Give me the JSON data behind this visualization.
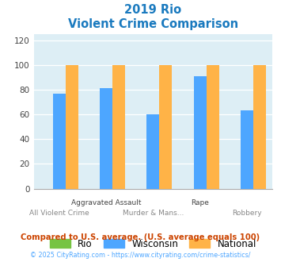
{
  "title_line1": "2019 Rio",
  "title_line2": "Violent Crime Comparison",
  "categories_top": [
    "",
    "Aggravated Assault",
    "",
    "Rape",
    ""
  ],
  "categories_bot": [
    "All Violent Crime",
    "",
    "Murder & Mans...",
    "",
    "Robbery"
  ],
  "rio_values": [
    0,
    0,
    0,
    0,
    0
  ],
  "wisconsin_values": [
    77,
    81,
    60,
    91,
    63
  ],
  "national_values": [
    100,
    100,
    100,
    100,
    100
  ],
  "rio_color": "#76c442",
  "wisconsin_color": "#4da6ff",
  "national_color": "#ffb347",
  "title_color": "#1a7abf",
  "axis_bg_color": "#ddeef5",
  "grid_color": "#ffffff",
  "ylabel_ticks": [
    0,
    20,
    40,
    60,
    80,
    100,
    120
  ],
  "ylim_max": 125,
  "footnote1": "Compared to U.S. average. (U.S. average equals 100)",
  "footnote2": "© 2025 CityRating.com - https://www.cityrating.com/crime-statistics/",
  "footnote1_color": "#cc4400",
  "footnote2_color": "#4da6ff",
  "legend_labels": [
    "Rio",
    "Wisconsin",
    "National"
  ],
  "bar_width": 0.27
}
